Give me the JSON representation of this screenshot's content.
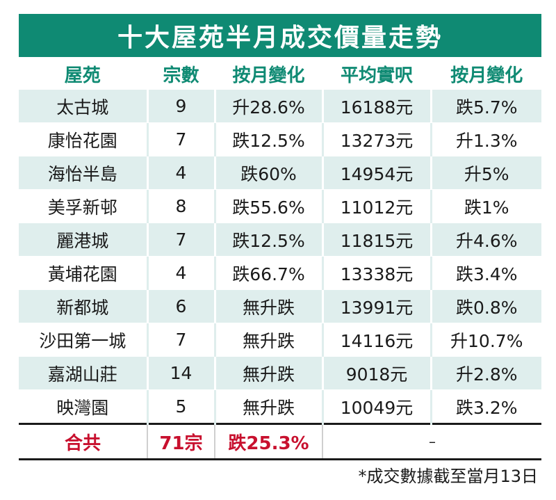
{
  "title": "十大屋苑半月成交價量走勢",
  "colors": {
    "header_green": "#0f8a73",
    "stripe": "#dfeeed",
    "total_red": "#c8102e"
  },
  "chart_data": {
    "type": "table",
    "columns": [
      "屋苑",
      "宗數",
      "按月變化",
      "平均實呎",
      "按月變化"
    ],
    "rows": [
      [
        "太古城",
        "9",
        "升28.6%",
        "16188元",
        "跌5.7%"
      ],
      [
        "康怡花園",
        "7",
        "跌12.5%",
        "13273元",
        "升1.3%"
      ],
      [
        "海怡半島",
        "4",
        "跌60%",
        "14954元",
        "升5%"
      ],
      [
        "美孚新邨",
        "8",
        "跌55.6%",
        "11012元",
        "跌1%"
      ],
      [
        "麗港城",
        "7",
        "跌12.5%",
        "11815元",
        "升4.6%"
      ],
      [
        "黃埔花園",
        "4",
        "跌66.7%",
        "13338元",
        "跌3.4%"
      ],
      [
        "新都城",
        "6",
        "無升跌",
        "13991元",
        "跌0.8%"
      ],
      [
        "沙田第一城",
        "7",
        "無升跌",
        "14116元",
        "升10.7%"
      ],
      [
        "嘉湖山莊",
        "14",
        "無升跌",
        "9018元",
        "升2.8%"
      ],
      [
        "映灣園",
        "5",
        "無升跌",
        "10049元",
        "跌3.2%"
      ]
    ],
    "total": [
      "合共",
      "71宗",
      "跌25.3%",
      "–"
    ]
  },
  "footnote": "*成交數據截至當月13日"
}
